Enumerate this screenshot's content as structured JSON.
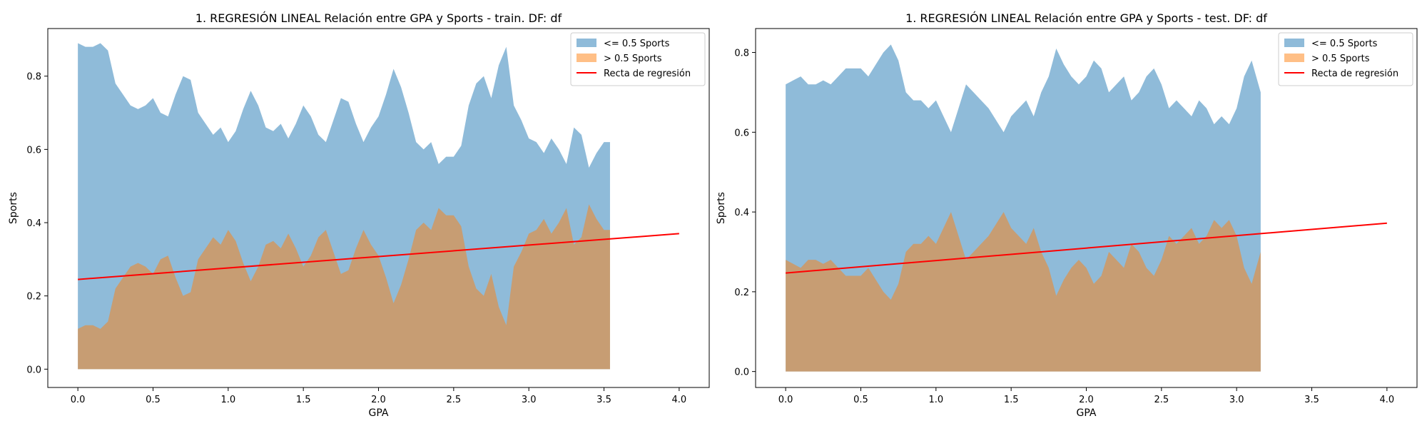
{
  "chart_data": [
    {
      "type": "area",
      "title": "1. REGRESIÓN LINEAL Relación entre GPA y Sports - train. DF: df",
      "xlabel": "GPA",
      "ylabel": "Sports",
      "xlim": [
        -0.2,
        4.2
      ],
      "ylim": [
        -0.05,
        0.93
      ],
      "xticks": [
        "0.0",
        "0.5",
        "1.0",
        "1.5",
        "2.0",
        "2.5",
        "3.0",
        "3.5",
        "4.0"
      ],
      "yticks": [
        "0.0",
        "0.2",
        "0.4",
        "0.6",
        "0.8"
      ],
      "grid": false,
      "legend_position": "top-right",
      "series": [
        {
          "name": "<= 0.5 Sports",
          "color": "#1f77b4",
          "opacity": 0.5,
          "x": [
            0.0,
            0.05,
            0.1,
            0.15,
            0.2,
            0.25,
            0.3,
            0.35,
            0.4,
            0.45,
            0.5,
            0.55,
            0.6,
            0.65,
            0.7,
            0.75,
            0.8,
            0.85,
            0.9,
            0.95,
            1.0,
            1.05,
            1.1,
            1.15,
            1.2,
            1.25,
            1.3,
            1.35,
            1.4,
            1.45,
            1.5,
            1.55,
            1.6,
            1.65,
            1.7,
            1.75,
            1.8,
            1.85,
            1.9,
            1.95,
            2.0,
            2.05,
            2.1,
            2.15,
            2.2,
            2.25,
            2.3,
            2.35,
            2.4,
            2.45,
            2.5,
            2.55,
            2.6,
            2.65,
            2.7,
            2.75,
            2.8,
            2.85,
            2.9,
            2.95,
            3.0,
            3.05,
            3.1,
            3.15,
            3.2,
            3.25,
            3.3,
            3.35,
            3.4,
            3.45,
            3.5,
            3.54
          ],
          "values": [
            0.89,
            0.88,
            0.88,
            0.89,
            0.87,
            0.78,
            0.75,
            0.72,
            0.71,
            0.72,
            0.74,
            0.7,
            0.69,
            0.75,
            0.8,
            0.79,
            0.7,
            0.67,
            0.64,
            0.66,
            0.62,
            0.65,
            0.71,
            0.76,
            0.72,
            0.66,
            0.65,
            0.67,
            0.63,
            0.67,
            0.72,
            0.69,
            0.64,
            0.62,
            0.68,
            0.74,
            0.73,
            0.67,
            0.62,
            0.66,
            0.69,
            0.75,
            0.82,
            0.77,
            0.7,
            0.62,
            0.6,
            0.62,
            0.56,
            0.58,
            0.58,
            0.61,
            0.72,
            0.78,
            0.8,
            0.74,
            0.83,
            0.88,
            0.72,
            0.68,
            0.63,
            0.62,
            0.59,
            0.63,
            0.6,
            0.56,
            0.66,
            0.64,
            0.55,
            0.59,
            0.62,
            0.62
          ]
        },
        {
          "name": "> 0.5 Sports",
          "color": "#ff7f0e",
          "opacity": 0.5,
          "x": [
            0.0,
            0.05,
            0.1,
            0.15,
            0.2,
            0.25,
            0.3,
            0.35,
            0.4,
            0.45,
            0.5,
            0.55,
            0.6,
            0.65,
            0.7,
            0.75,
            0.8,
            0.85,
            0.9,
            0.95,
            1.0,
            1.05,
            1.1,
            1.15,
            1.2,
            1.25,
            1.3,
            1.35,
            1.4,
            1.45,
            1.5,
            1.55,
            1.6,
            1.65,
            1.7,
            1.75,
            1.8,
            1.85,
            1.9,
            1.95,
            2.0,
            2.05,
            2.1,
            2.15,
            2.2,
            2.25,
            2.3,
            2.35,
            2.4,
            2.45,
            2.5,
            2.55,
            2.6,
            2.65,
            2.7,
            2.75,
            2.8,
            2.85,
            2.9,
            2.95,
            3.0,
            3.05,
            3.1,
            3.15,
            3.2,
            3.25,
            3.3,
            3.35,
            3.4,
            3.45,
            3.5,
            3.54
          ],
          "values": [
            0.11,
            0.12,
            0.12,
            0.11,
            0.13,
            0.22,
            0.25,
            0.28,
            0.29,
            0.28,
            0.26,
            0.3,
            0.31,
            0.25,
            0.2,
            0.21,
            0.3,
            0.33,
            0.36,
            0.34,
            0.38,
            0.35,
            0.29,
            0.24,
            0.28,
            0.34,
            0.35,
            0.33,
            0.37,
            0.33,
            0.28,
            0.31,
            0.36,
            0.38,
            0.32,
            0.26,
            0.27,
            0.33,
            0.38,
            0.34,
            0.31,
            0.25,
            0.18,
            0.23,
            0.3,
            0.38,
            0.4,
            0.38,
            0.44,
            0.42,
            0.42,
            0.39,
            0.28,
            0.22,
            0.2,
            0.26,
            0.17,
            0.12,
            0.28,
            0.32,
            0.37,
            0.38,
            0.41,
            0.37,
            0.4,
            0.44,
            0.34,
            0.36,
            0.45,
            0.41,
            0.38,
            0.38
          ]
        },
        {
          "name": "Recta de regresión",
          "color": "#ff0000",
          "kind": "line",
          "x": [
            0.0,
            4.0
          ],
          "values": [
            0.245,
            0.37
          ]
        }
      ]
    },
    {
      "type": "area",
      "title": "1. REGRESIÓN LINEAL Relación entre GPA y Sports - test. DF: df",
      "xlabel": "GPA",
      "ylabel": "Sports",
      "xlim": [
        -0.2,
        4.2
      ],
      "ylim": [
        -0.04,
        0.86
      ],
      "xticks": [
        "0.0",
        "0.5",
        "1.0",
        "1.5",
        "2.0",
        "2.5",
        "3.0",
        "3.5",
        "4.0"
      ],
      "yticks": [
        "0.0",
        "0.2",
        "0.4",
        "0.6",
        "0.8"
      ],
      "grid": false,
      "legend_position": "top-right",
      "series": [
        {
          "name": "<= 0.5 Sports",
          "color": "#1f77b4",
          "opacity": 0.5,
          "x": [
            0.0,
            0.05,
            0.1,
            0.15,
            0.2,
            0.25,
            0.3,
            0.35,
            0.4,
            0.45,
            0.5,
            0.55,
            0.6,
            0.65,
            0.7,
            0.75,
            0.8,
            0.85,
            0.9,
            0.95,
            1.0,
            1.05,
            1.1,
            1.15,
            1.2,
            1.25,
            1.3,
            1.35,
            1.4,
            1.45,
            1.5,
            1.55,
            1.6,
            1.65,
            1.7,
            1.75,
            1.8,
            1.85,
            1.9,
            1.95,
            2.0,
            2.05,
            2.1,
            2.15,
            2.2,
            2.25,
            2.3,
            2.35,
            2.4,
            2.45,
            2.5,
            2.55,
            2.6,
            2.65,
            2.7,
            2.75,
            2.8,
            2.85,
            2.9,
            2.95,
            3.0,
            3.05,
            3.1,
            3.16
          ],
          "values": [
            0.72,
            0.73,
            0.74,
            0.72,
            0.72,
            0.73,
            0.72,
            0.74,
            0.76,
            0.76,
            0.76,
            0.74,
            0.77,
            0.8,
            0.82,
            0.78,
            0.7,
            0.68,
            0.68,
            0.66,
            0.68,
            0.64,
            0.6,
            0.66,
            0.72,
            0.7,
            0.68,
            0.66,
            0.63,
            0.6,
            0.64,
            0.66,
            0.68,
            0.64,
            0.7,
            0.74,
            0.81,
            0.77,
            0.74,
            0.72,
            0.74,
            0.78,
            0.76,
            0.7,
            0.72,
            0.74,
            0.68,
            0.7,
            0.74,
            0.76,
            0.72,
            0.66,
            0.68,
            0.66,
            0.64,
            0.68,
            0.66,
            0.62,
            0.64,
            0.62,
            0.66,
            0.74,
            0.78,
            0.7
          ]
        },
        {
          "name": "> 0.5 Sports",
          "color": "#ff7f0e",
          "opacity": 0.5,
          "x": [
            0.0,
            0.05,
            0.1,
            0.15,
            0.2,
            0.25,
            0.3,
            0.35,
            0.4,
            0.45,
            0.5,
            0.55,
            0.6,
            0.65,
            0.7,
            0.75,
            0.8,
            0.85,
            0.9,
            0.95,
            1.0,
            1.05,
            1.1,
            1.15,
            1.2,
            1.25,
            1.3,
            1.35,
            1.4,
            1.45,
            1.5,
            1.55,
            1.6,
            1.65,
            1.7,
            1.75,
            1.8,
            1.85,
            1.9,
            1.95,
            2.0,
            2.05,
            2.1,
            2.15,
            2.2,
            2.25,
            2.3,
            2.35,
            2.4,
            2.45,
            2.5,
            2.55,
            2.6,
            2.65,
            2.7,
            2.75,
            2.8,
            2.85,
            2.9,
            2.95,
            3.0,
            3.05,
            3.1,
            3.16
          ],
          "values": [
            0.28,
            0.27,
            0.26,
            0.28,
            0.28,
            0.27,
            0.28,
            0.26,
            0.24,
            0.24,
            0.24,
            0.26,
            0.23,
            0.2,
            0.18,
            0.22,
            0.3,
            0.32,
            0.32,
            0.34,
            0.32,
            0.36,
            0.4,
            0.34,
            0.28,
            0.3,
            0.32,
            0.34,
            0.37,
            0.4,
            0.36,
            0.34,
            0.32,
            0.36,
            0.3,
            0.26,
            0.19,
            0.23,
            0.26,
            0.28,
            0.26,
            0.22,
            0.24,
            0.3,
            0.28,
            0.26,
            0.32,
            0.3,
            0.26,
            0.24,
            0.28,
            0.34,
            0.32,
            0.34,
            0.36,
            0.32,
            0.34,
            0.38,
            0.36,
            0.38,
            0.34,
            0.26,
            0.22,
            0.3
          ]
        },
        {
          "name": "Recta de regresión",
          "color": "#ff0000",
          "kind": "line",
          "x": [
            0.0,
            4.0
          ],
          "values": [
            0.247,
            0.372
          ]
        }
      ]
    }
  ]
}
